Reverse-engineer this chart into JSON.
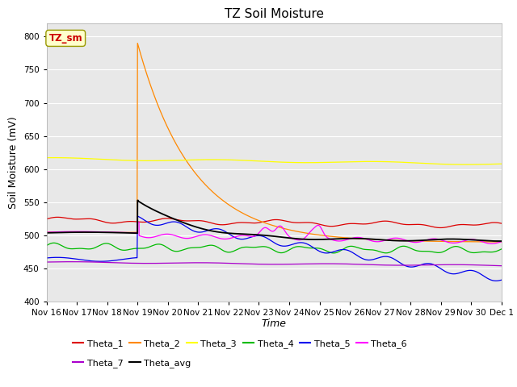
{
  "title": "TZ Soil Moisture",
  "ylabel": "Soil Moisture (mV)",
  "xlabel": "Time",
  "ylim": [
    400,
    820
  ],
  "x_tick_labels": [
    "Nov 16",
    "Nov 17",
    "Nov 18",
    "Nov 19",
    "Nov 20",
    "Nov 21",
    "Nov 22",
    "Nov 23",
    "Nov 24",
    "Nov 25",
    "Nov 26",
    "Nov 27",
    "Nov 28",
    "Nov 29",
    "Nov 30",
    "Dec 1"
  ],
  "annotation_label": "TZ_sm",
  "annotation_color": "#cc0000",
  "annotation_box_color": "#ffffcc",
  "annotation_edge_color": "#999900",
  "series_colors": {
    "Theta_1": "#dd0000",
    "Theta_2": "#ff8800",
    "Theta_3": "#ffff00",
    "Theta_4": "#00bb00",
    "Theta_5": "#0000ee",
    "Theta_6": "#ff00ff",
    "Theta_7": "#aa00cc",
    "Theta_avg": "#000000"
  },
  "background_color": "#e8e8e8",
  "grid_color": "#ffffff",
  "title_fontsize": 11,
  "axis_label_fontsize": 9,
  "tick_fontsize": 7.5
}
